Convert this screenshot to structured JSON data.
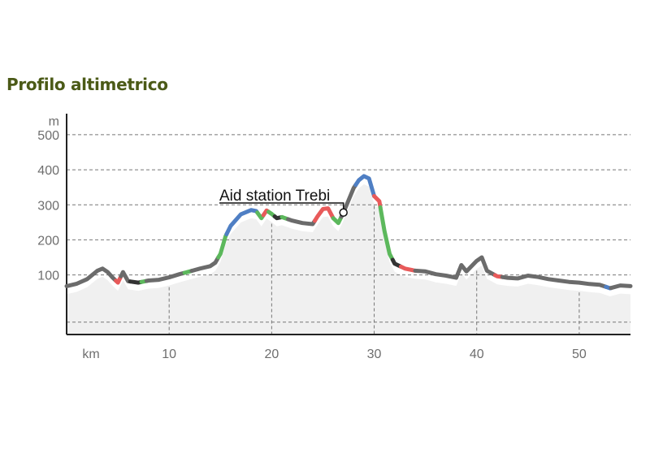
{
  "title": "Profilo altimetrico",
  "colors": {
    "title": "#4b5a17",
    "grade_flat": "#6b6b6b",
    "grade_dark": "#333333",
    "grade_green": "#5cb85c",
    "grade_red": "#e85a5a",
    "grade_blue": "#4f7fc4",
    "gridline": "#777777",
    "axis": "#222222",
    "fill": "#f0f0f0"
  },
  "chart_data": {
    "type": "line",
    "title": "",
    "xlabel": "km",
    "ylabel": "m",
    "xlim": [
      0,
      55
    ],
    "ylim": [
      -70,
      560
    ],
    "x_ticks": [
      10,
      20,
      30,
      40,
      50
    ],
    "y_ticks": [
      100,
      200,
      300,
      400,
      500
    ],
    "grid": "horizontal dashed lines, vertical dashed markers at every 10 km",
    "legend": "none",
    "series": [
      {
        "points": [
          [
            0,
            68
          ],
          [
            1,
            75
          ],
          [
            2,
            88
          ],
          [
            3,
            112
          ],
          [
            3.5,
            118
          ],
          [
            4,
            108
          ],
          [
            4.5,
            92
          ],
          [
            5,
            78
          ],
          [
            5.5,
            108
          ],
          [
            6,
            82
          ],
          [
            7,
            78
          ],
          [
            8,
            84
          ],
          [
            9,
            86
          ],
          [
            10,
            93
          ],
          [
            11,
            102
          ],
          [
            12,
            110
          ],
          [
            13,
            118
          ],
          [
            14,
            125
          ],
          [
            14.5,
            135
          ],
          [
            15,
            160
          ],
          [
            15.5,
            210
          ],
          [
            16,
            240
          ],
          [
            17,
            273
          ],
          [
            18,
            285
          ],
          [
            18.5,
            282
          ],
          [
            19,
            262
          ],
          [
            19.5,
            284
          ],
          [
            20,
            274
          ],
          [
            20.5,
            262
          ],
          [
            21,
            265
          ],
          [
            22,
            255
          ],
          [
            23,
            248
          ],
          [
            24,
            245
          ],
          [
            24.5,
            268
          ],
          [
            25,
            288
          ],
          [
            25.5,
            290
          ],
          [
            26,
            262
          ],
          [
            26.5,
            248
          ],
          [
            27,
            278
          ],
          [
            28,
            348
          ],
          [
            28.5,
            370
          ],
          [
            29,
            382
          ],
          [
            29.5,
            375
          ],
          [
            30,
            325
          ],
          [
            30.5,
            310
          ],
          [
            31,
            225
          ],
          [
            31.5,
            160
          ],
          [
            32,
            132
          ],
          [
            33,
            118
          ],
          [
            34,
            112
          ],
          [
            35,
            110
          ],
          [
            36,
            102
          ],
          [
            37,
            98
          ],
          [
            38,
            92
          ],
          [
            38.5,
            128
          ],
          [
            39,
            110
          ],
          [
            40,
            140
          ],
          [
            40.5,
            150
          ],
          [
            41,
            112
          ],
          [
            42,
            96
          ],
          [
            43,
            92
          ],
          [
            44,
            90
          ],
          [
            45,
            98
          ],
          [
            46,
            94
          ],
          [
            47,
            88
          ],
          [
            48,
            84
          ],
          [
            49,
            80
          ],
          [
            50,
            78
          ],
          [
            51,
            74
          ],
          [
            52,
            72
          ],
          [
            53,
            62
          ],
          [
            54,
            70
          ],
          [
            55,
            68
          ]
        ]
      }
    ],
    "grade_segments": [
      {
        "from": 0,
        "to": 4.8,
        "grade": "flat"
      },
      {
        "from": 4.8,
        "to": 5.3,
        "grade": "red"
      },
      {
        "from": 5.3,
        "to": 6.2,
        "grade": "flat"
      },
      {
        "from": 6.2,
        "to": 7.3,
        "grade": "dark"
      },
      {
        "from": 7.3,
        "to": 7.8,
        "grade": "green"
      },
      {
        "from": 7.8,
        "to": 11.5,
        "grade": "flat"
      },
      {
        "from": 11.5,
        "to": 12.2,
        "grade": "green"
      },
      {
        "from": 12.2,
        "to": 14.8,
        "grade": "flat"
      },
      {
        "from": 14.8,
        "to": 15.6,
        "grade": "green"
      },
      {
        "from": 15.6,
        "to": 18.6,
        "grade": "blue"
      },
      {
        "from": 18.6,
        "to": 19.2,
        "grade": "green"
      },
      {
        "from": 19.2,
        "to": 19.7,
        "grade": "red"
      },
      {
        "from": 19.7,
        "to": 20.3,
        "grade": "green"
      },
      {
        "from": 20.3,
        "to": 21.0,
        "grade": "dark"
      },
      {
        "from": 21.0,
        "to": 21.6,
        "grade": "green"
      },
      {
        "from": 21.6,
        "to": 24.2,
        "grade": "flat"
      },
      {
        "from": 24.2,
        "to": 26.0,
        "grade": "red"
      },
      {
        "from": 26.0,
        "to": 26.8,
        "grade": "green"
      },
      {
        "from": 26.8,
        "to": 28.2,
        "grade": "flat"
      },
      {
        "from": 28.2,
        "to": 30.0,
        "grade": "blue"
      },
      {
        "from": 30.0,
        "to": 30.6,
        "grade": "red"
      },
      {
        "from": 30.6,
        "to": 31.8,
        "grade": "green"
      },
      {
        "from": 31.8,
        "to": 32.6,
        "grade": "dark"
      },
      {
        "from": 32.6,
        "to": 34.0,
        "grade": "red"
      },
      {
        "from": 34.0,
        "to": 41.8,
        "grade": "flat"
      },
      {
        "from": 41.8,
        "to": 42.5,
        "grade": "red"
      },
      {
        "from": 42.5,
        "to": 52.6,
        "grade": "flat"
      },
      {
        "from": 52.6,
        "to": 53.1,
        "grade": "blue"
      },
      {
        "from": 53.1,
        "to": 55,
        "grade": "flat"
      }
    ],
    "annotations": [
      {
        "text": "Aid station Trebi",
        "x": 27
      }
    ]
  }
}
